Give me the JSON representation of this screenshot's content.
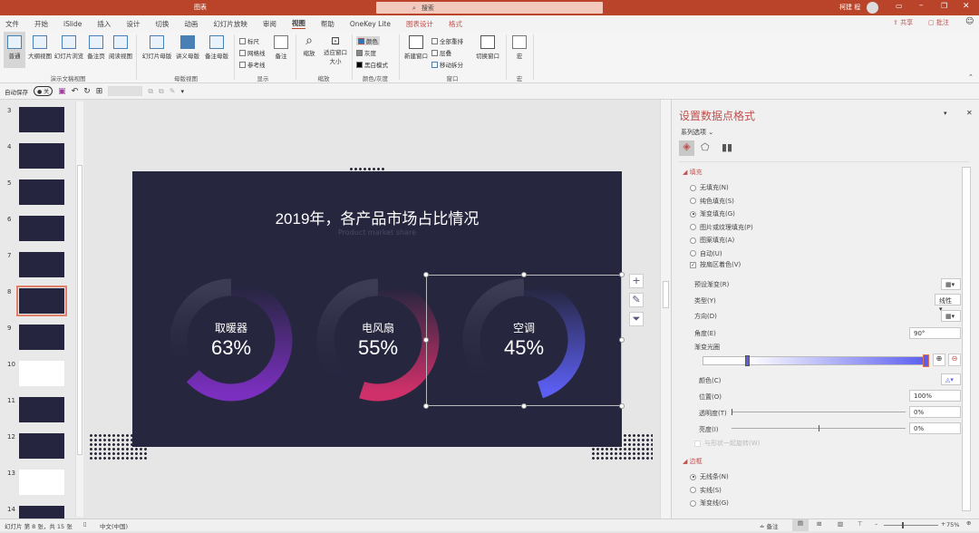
{
  "window": {
    "title": "图表",
    "search_placeholder": "搜索",
    "user": "柯建 程",
    "share": "共享",
    "comment": "批注"
  },
  "tabs": [
    {
      "label": "文件"
    },
    {
      "label": "开始"
    },
    {
      "label": "iSlide"
    },
    {
      "label": "插入"
    },
    {
      "label": "设计"
    },
    {
      "label": "切换"
    },
    {
      "label": "动画"
    },
    {
      "label": "幻灯片放映"
    },
    {
      "label": "审阅"
    },
    {
      "label": "视图",
      "active": true
    },
    {
      "label": "帮助"
    },
    {
      "label": "OneKey Lite"
    },
    {
      "label": "图表设计",
      "contextual": true
    },
    {
      "label": "格式",
      "contextual": true
    }
  ],
  "ribbon": {
    "views": [
      "普通",
      "大纲视图",
      "幻灯片浏览",
      "备注页",
      "阅读视图"
    ],
    "views_group": "演示文稿视图",
    "masters": [
      "幻灯片母版",
      "讲义母版",
      "备注母版"
    ],
    "masters_group": "母版视图",
    "show": {
      "checks": [
        "标尺",
        "网格线",
        "参考线"
      ],
      "notes": "备注",
      "group": "显示"
    },
    "zoom": {
      "zoom": "缩放",
      "fit": "适应窗口大小",
      "group": "缩放"
    },
    "color": {
      "items": [
        "颜色",
        "灰度",
        "黑白模式"
      ],
      "group": "颜色/灰度"
    },
    "window": {
      "new": "新建窗口",
      "items": [
        "全部重排",
        "层叠",
        "移动拆分"
      ],
      "switch": "切换窗口",
      "group": "窗口"
    },
    "macro": {
      "label": "宏",
      "group": "宏"
    }
  },
  "qat": {
    "autosave": "自动保存",
    "toggle": "关"
  },
  "thumbnails": [
    {
      "n": "3"
    },
    {
      "n": "4"
    },
    {
      "n": "5"
    },
    {
      "n": "6"
    },
    {
      "n": "7"
    },
    {
      "n": "8",
      "selected": true
    },
    {
      "n": "9"
    },
    {
      "n": "10"
    },
    {
      "n": "11"
    },
    {
      "n": "12"
    },
    {
      "n": "13"
    },
    {
      "n": "14"
    }
  ],
  "slide": {
    "title": "2019年，各产品市场占比情况",
    "subtitle": "Product market share",
    "donuts": [
      {
        "label": "取暖器",
        "value": 63,
        "text": "63%",
        "color": "#7b2fbf"
      },
      {
        "label": "电风扇",
        "value": 55,
        "text": "55%",
        "color": "#d0306a"
      },
      {
        "label": "空调",
        "value": 45,
        "text": "45%",
        "color": "#5b5ef0"
      }
    ]
  },
  "pane": {
    "title": "设置数据点格式",
    "series_options": "系列选项",
    "fill_section": "填充",
    "fill_options": [
      {
        "label": "无填充(N)"
      },
      {
        "label": "纯色填充(S)"
      },
      {
        "label": "渐变填充(G)",
        "selected": true
      },
      {
        "label": "图片或纹理填充(P)"
      },
      {
        "label": "图案填充(A)"
      },
      {
        "label": "自动(U)"
      }
    ],
    "vary_colors": "按扇区着色(V)",
    "preset": "预设渐变(R)",
    "type_label": "类型(Y)",
    "type_value": "线性",
    "direction": "方向(D)",
    "angle_label": "角度(E)",
    "angle_value": "90°",
    "stops_label": "渐变光圈",
    "color_label": "颜色(C)",
    "position_label": "位置(O)",
    "position_value": "100%",
    "transparency_label": "透明度(T)",
    "transparency_value": "0%",
    "brightness_label": "亮度(I)",
    "brightness_value": "0%",
    "rotate_with_shape": "与形状一起旋转(W)",
    "border_section": "边框",
    "border_options": [
      {
        "label": "无线条(N)",
        "selected": true
      },
      {
        "label": "实线(S)"
      },
      {
        "label": "渐变线(G)"
      }
    ]
  },
  "status": {
    "slide": "幻灯片 第 8 张，共 15 张",
    "lang": "中文(中国)",
    "notes": "备注",
    "zoom": "75%"
  },
  "colors": {
    "accent": "#b9442a",
    "slide_bg": "#26263f",
    "gradient_end": "#5b5ef0"
  }
}
